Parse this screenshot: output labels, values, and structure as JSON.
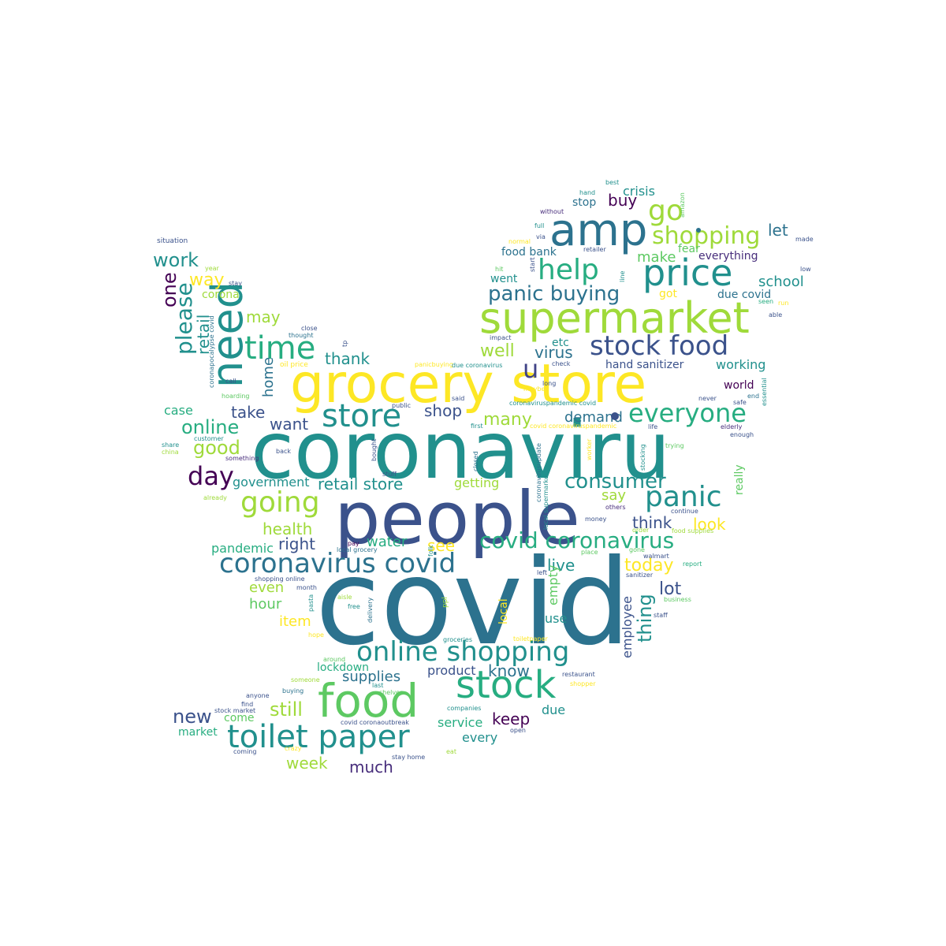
{
  "palette": {
    "c0": "#440154",
    "c1": "#414487",
    "c2": "#3b528b",
    "c3": "#2c728e",
    "c4": "#21908d",
    "c5": "#27ad81",
    "c6": "#5dc962",
    "c7": "#9fda3a",
    "c8": "#fde725",
    "c9": "#472d7b"
  },
  "words": [
    {
      "text": "covid",
      "color": "c3"
    },
    {
      "text": "coronaviru",
      "color": "c4"
    },
    {
      "text": "people",
      "color": "c2"
    },
    {
      "text": "grocery store",
      "color": "c8"
    },
    {
      "text": "supermarket",
      "color": "c7"
    },
    {
      "text": "amp",
      "color": "c3"
    },
    {
      "text": "price",
      "color": "c4"
    },
    {
      "text": "food",
      "color": "c6"
    },
    {
      "text": "stock",
      "color": "c5"
    },
    {
      "text": "toilet paper",
      "color": "c4"
    },
    {
      "text": "online shopping",
      "color": "c4"
    },
    {
      "text": "coronavirus covid",
      "color": "c3"
    },
    {
      "text": "covid coronavirus",
      "color": "c5"
    },
    {
      "text": "stock food",
      "color": "c2"
    },
    {
      "text": "store",
      "color": "c4"
    },
    {
      "text": "need",
      "color": "c4"
    },
    {
      "text": "time",
      "color": "c5"
    },
    {
      "text": "everyone",
      "color": "c5"
    },
    {
      "text": "panic",
      "color": "c4"
    },
    {
      "text": "going",
      "color": "c7"
    },
    {
      "text": "help",
      "color": "c5"
    },
    {
      "text": "shopping",
      "color": "c7"
    },
    {
      "text": "go",
      "color": "c7"
    },
    {
      "text": "panic buying",
      "color": "c3"
    },
    {
      "text": "consumer",
      "color": "c4"
    },
    {
      "text": "day",
      "color": "c0"
    },
    {
      "text": "u",
      "color": "c1"
    },
    {
      "text": "work",
      "color": "c4"
    },
    {
      "text": "please",
      "color": "c4"
    },
    {
      "text": "one",
      "color": "c0"
    },
    {
      "text": "way",
      "color": "c8"
    },
    {
      "text": "retail",
      "color": "c4"
    },
    {
      "text": "corona",
      "color": "c7"
    },
    {
      "text": "may",
      "color": "c7"
    },
    {
      "text": "thank",
      "color": "c4"
    },
    {
      "text": "home",
      "color": "c3"
    },
    {
      "text": "online",
      "color": "c5"
    },
    {
      "text": "good",
      "color": "c7"
    },
    {
      "text": "take",
      "color": "c2"
    },
    {
      "text": "want",
      "color": "c2"
    },
    {
      "text": "shop",
      "color": "c2"
    },
    {
      "text": "demand",
      "color": "c3"
    },
    {
      "text": "many",
      "color": "c7"
    },
    {
      "text": "case",
      "color": "c5"
    },
    {
      "text": "government",
      "color": "c4"
    },
    {
      "text": "retail store",
      "color": "c4"
    },
    {
      "text": "getting",
      "color": "c7"
    },
    {
      "text": "health",
      "color": "c7"
    },
    {
      "text": "right",
      "color": "c2"
    },
    {
      "text": "pandemic",
      "color": "c5"
    },
    {
      "text": "water",
      "color": "c5"
    },
    {
      "text": "see",
      "color": "c8"
    },
    {
      "text": "live",
      "color": "c4"
    },
    {
      "text": "today",
      "color": "c8"
    },
    {
      "text": "thing",
      "color": "c4"
    },
    {
      "text": "lot",
      "color": "c2"
    },
    {
      "text": "employee",
      "color": "c2"
    },
    {
      "text": "empty",
      "color": "c6"
    },
    {
      "text": "even",
      "color": "c7"
    },
    {
      "text": "hour",
      "color": "c6"
    },
    {
      "text": "item",
      "color": "c8"
    },
    {
      "text": "local",
      "color": "c8"
    },
    {
      "text": "use",
      "color": "c4"
    },
    {
      "text": "say",
      "color": "c7"
    },
    {
      "text": "think",
      "color": "c2"
    },
    {
      "text": "look",
      "color": "c8"
    },
    {
      "text": "really",
      "color": "c6"
    },
    {
      "text": "well",
      "color": "c7"
    },
    {
      "text": "virus",
      "color": "c3"
    },
    {
      "text": "etc",
      "color": "c4"
    },
    {
      "text": "hand sanitizer",
      "color": "c2"
    },
    {
      "text": "working",
      "color": "c4"
    },
    {
      "text": "world",
      "color": "c0"
    },
    {
      "text": "school",
      "color": "c4"
    },
    {
      "text": "due covid",
      "color": "c3"
    },
    {
      "text": "got",
      "color": "c8"
    },
    {
      "text": "went",
      "color": "c4"
    },
    {
      "text": "make",
      "color": "c6"
    },
    {
      "text": "food bank",
      "color": "c3"
    },
    {
      "text": "everything",
      "color": "c9"
    },
    {
      "text": "let",
      "color": "c3"
    },
    {
      "text": "buy",
      "color": "c0"
    },
    {
      "text": "stop",
      "color": "c3"
    },
    {
      "text": "crisis",
      "color": "c4"
    },
    {
      "text": "fear",
      "color": "c6"
    },
    {
      "text": "lockdown",
      "color": "c5"
    },
    {
      "text": "supplies",
      "color": "c3"
    },
    {
      "text": "product",
      "color": "c2"
    },
    {
      "text": "know",
      "color": "c3"
    },
    {
      "text": "still",
      "color": "c7"
    },
    {
      "text": "new",
      "color": "c2"
    },
    {
      "text": "come",
      "color": "c6"
    },
    {
      "text": "keep",
      "color": "c0"
    },
    {
      "text": "due",
      "color": "c4"
    },
    {
      "text": "service",
      "color": "c5"
    },
    {
      "text": "every",
      "color": "c4"
    },
    {
      "text": "market",
      "color": "c5"
    },
    {
      "text": "week",
      "color": "c7"
    },
    {
      "text": "much",
      "color": "c9"
    },
    {
      "text": "situation",
      "color": "c2"
    },
    {
      "text": "year",
      "color": "c7"
    },
    {
      "text": "stay",
      "color": "c2"
    },
    {
      "text": "close",
      "color": "c2"
    },
    {
      "text": "thought",
      "color": "c3"
    },
    {
      "text": "tp",
      "color": "c2"
    },
    {
      "text": "oil price",
      "color": "c8"
    },
    {
      "text": "coronapocalypse covid",
      "color": "c3"
    },
    {
      "text": "call",
      "color": "c2"
    },
    {
      "text": "hoarding",
      "color": "c6"
    },
    {
      "text": "customer",
      "color": "c4"
    },
    {
      "text": "share",
      "color": "c4"
    },
    {
      "text": "china",
      "color": "c7"
    },
    {
      "text": "something",
      "color": "c9"
    },
    {
      "text": "back",
      "color": "c2"
    },
    {
      "text": "already",
      "color": "c7"
    },
    {
      "text": "pay",
      "color": "c0"
    },
    {
      "text": "local grocery",
      "color": "c3"
    },
    {
      "text": "folk",
      "color": "c4"
    },
    {
      "text": "shopping online",
      "color": "c2"
    },
    {
      "text": "month",
      "color": "c2"
    },
    {
      "text": "pasta",
      "color": "c4"
    },
    {
      "text": "aisle",
      "color": "c7"
    },
    {
      "text": "free",
      "color": "c4"
    },
    {
      "text": "delivery",
      "color": "c3"
    },
    {
      "text": "ppl",
      "color": "c7"
    },
    {
      "text": "hope",
      "color": "c8"
    },
    {
      "text": "groceries",
      "color": "c4"
    },
    {
      "text": "toiletpaper",
      "color": "c8"
    },
    {
      "text": "around",
      "color": "c6"
    },
    {
      "text": "someone",
      "color": "c7"
    },
    {
      "text": "last",
      "color": "c4"
    },
    {
      "text": "shelves",
      "color": "c6"
    },
    {
      "text": "anyone",
      "color": "c2"
    },
    {
      "text": "buying",
      "color": "c3"
    },
    {
      "text": "find",
      "color": "c2"
    },
    {
      "text": "stock market",
      "color": "c2"
    },
    {
      "text": "coming",
      "color": "c2"
    },
    {
      "text": "crazy",
      "color": "c8"
    },
    {
      "text": "stay home",
      "color": "c2"
    },
    {
      "text": "covid coronaoutbreak",
      "color": "c2"
    },
    {
      "text": "companies",
      "color": "c4"
    },
    {
      "text": "eat",
      "color": "c7"
    },
    {
      "text": "open",
      "color": "c2"
    },
    {
      "text": "restaurant",
      "color": "c2"
    },
    {
      "text": "shopper",
      "color": "c8"
    },
    {
      "text": "gone",
      "color": "c6"
    },
    {
      "text": "staff",
      "color": "c2"
    },
    {
      "text": "business",
      "color": "c6"
    },
    {
      "text": "report",
      "color": "c5"
    },
    {
      "text": "sanitizer",
      "color": "c2"
    },
    {
      "text": "left",
      "color": "c2"
    },
    {
      "text": "place",
      "color": "c6"
    },
    {
      "text": "walmart",
      "color": "c2"
    },
    {
      "text": "order",
      "color": "c7"
    },
    {
      "text": "food supplies",
      "color": "c7"
    },
    {
      "text": "continue",
      "color": "c2"
    },
    {
      "text": "others",
      "color": "c9"
    },
    {
      "text": "money",
      "color": "c2"
    },
    {
      "text": "stocking",
      "color": "c4"
    },
    {
      "text": "trying",
      "color": "c6"
    },
    {
      "text": "worker",
      "color": "c8"
    },
    {
      "text": "enough",
      "color": "c2"
    },
    {
      "text": "elderly",
      "color": "c9"
    },
    {
      "text": "life",
      "color": "c2"
    },
    {
      "text": "end",
      "color": "c3"
    },
    {
      "text": "safe",
      "color": "c2"
    },
    {
      "text": "essential",
      "color": "c4"
    },
    {
      "text": "never",
      "color": "c2"
    },
    {
      "text": "long",
      "color": "c2"
    },
    {
      "text": "maybe",
      "color": "c8"
    },
    {
      "text": "check",
      "color": "c2"
    },
    {
      "text": "seen",
      "color": "c5"
    },
    {
      "text": "run",
      "color": "c8"
    },
    {
      "text": "able",
      "color": "c2"
    },
    {
      "text": "low",
      "color": "c2"
    },
    {
      "text": "made",
      "color": "c2"
    },
    {
      "text": "best",
      "color": "c4"
    },
    {
      "text": "hand",
      "color": "c4"
    },
    {
      "text": "without",
      "color": "c9"
    },
    {
      "text": "full",
      "color": "c4"
    },
    {
      "text": "amazon",
      "color": "c6"
    },
    {
      "text": "normal",
      "color": "c8"
    },
    {
      "text": "via",
      "color": "c2"
    },
    {
      "text": "retailer",
      "color": "c2"
    },
    {
      "text": "start",
      "color": "c2"
    },
    {
      "text": "line",
      "color": "c4"
    },
    {
      "text": "hit",
      "color": "c6"
    },
    {
      "text": "impact",
      "color": "c2"
    },
    {
      "text": "panicbuying",
      "color": "c8"
    },
    {
      "text": "due coronavirus",
      "color": "c4"
    },
    {
      "text": "said",
      "color": "c2"
    },
    {
      "text": "public",
      "color": "c2"
    },
    {
      "text": "coronaviruspandemic covid",
      "color": "c4"
    },
    {
      "text": "first",
      "color": "c4"
    },
    {
      "text": "covid coronaviruspandemic",
      "color": "c8"
    },
    {
      "text": "bought",
      "color": "c2"
    },
    {
      "text": "closed",
      "color": "c3"
    },
    {
      "text": "stuff",
      "color": "c2"
    },
    {
      "text": "coronavirusupdate",
      "color": "c3"
    },
    {
      "text": "local supermarket",
      "color": "c4"
    }
  ]
}
